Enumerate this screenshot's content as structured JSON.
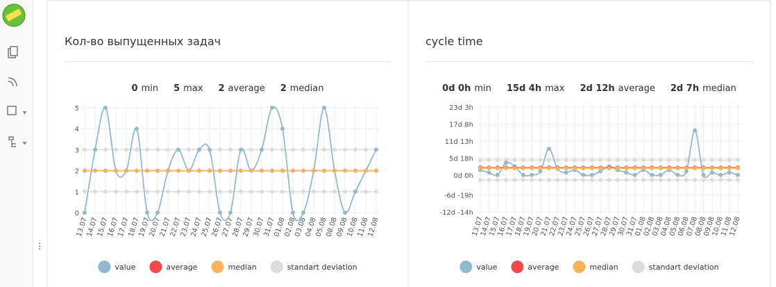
{
  "chart_data": [
    {
      "type": "line",
      "title": "Кол-во выпущенных задач",
      "stats": [
        {
          "value": "0",
          "label": "min"
        },
        {
          "value": "5",
          "label": "max"
        },
        {
          "value": "2",
          "label": "average"
        },
        {
          "value": "2",
          "label": "median"
        }
      ],
      "categories": [
        "13.07",
        "14.07",
        "15.07",
        "16.07",
        "17.07",
        "18.07",
        "19.07",
        "20.07",
        "21.07",
        "22.07",
        "23.07",
        "24.07",
        "25.07",
        "26.07",
        "27.07",
        "28.07",
        "29.07",
        "30.07",
        "31.07",
        "01.08",
        "02.08",
        "03.08",
        "04.08",
        "05.08",
        "08.08",
        "09.08",
        "10.08",
        "11.08",
        "12.08"
      ],
      "ylim": [
        0,
        5
      ],
      "yticks": [
        0,
        1,
        2,
        3,
        4,
        5
      ],
      "grid": true,
      "series": [
        {
          "name": "value",
          "color": "#94b8cc",
          "values": [
            0,
            3,
            5,
            2,
            2,
            4,
            0,
            0,
            2,
            3,
            2,
            3,
            3,
            0,
            0,
            3,
            2,
            3,
            5,
            4,
            0,
            0,
            2,
            5,
            2,
            0,
            1,
            2,
            3
          ]
        },
        {
          "name": "average",
          "color": "#f04a4a",
          "values": [
            2,
            2,
            2,
            2,
            2,
            2,
            2,
            2,
            2,
            2,
            2,
            2,
            2,
            2,
            2,
            2,
            2,
            2,
            2,
            2,
            2,
            2,
            2,
            2,
            2,
            2,
            2,
            2,
            2
          ]
        },
        {
          "name": "median",
          "color": "#f7b25e",
          "values": [
            2,
            2,
            2,
            2,
            2,
            2,
            2,
            2,
            2,
            2,
            2,
            2,
            2,
            2,
            2,
            2,
            2,
            2,
            2,
            2,
            2,
            2,
            2,
            2,
            2,
            2,
            2,
            2,
            2
          ]
        },
        {
          "name": "standart deviation",
          "color": "#dcdcdc",
          "values": [
            3,
            3,
            3,
            3,
            3,
            3,
            3,
            3,
            3,
            3,
            3,
            3,
            3,
            3,
            3,
            3,
            3,
            3,
            3,
            3,
            3,
            3,
            3,
            3,
            3,
            3,
            3,
            3,
            3
          ],
          "values_low": [
            1,
            1,
            1,
            1,
            1,
            1,
            1,
            1,
            1,
            1,
            1,
            1,
            1,
            1,
            1,
            1,
            1,
            1,
            1,
            1,
            1,
            1,
            1,
            1,
            1,
            1,
            1,
            1,
            1
          ]
        }
      ]
    },
    {
      "type": "line",
      "title": "cycle time",
      "stats": [
        {
          "value": "0d 0h",
          "label": "min"
        },
        {
          "value": "15d 4h",
          "label": "max"
        },
        {
          "value": "2d 12h",
          "label": "average"
        },
        {
          "value": "2d 7h",
          "label": "median"
        }
      ],
      "categories": [
        "13.07",
        "14.07",
        "15.07",
        "16.07",
        "17.07",
        "18.07",
        "19.07",
        "20.07",
        "21.07",
        "22.07",
        "23.07",
        "24.07",
        "25.07",
        "26.07",
        "27.07",
        "28.07",
        "29.07",
        "30.07",
        "31.07",
        "01.08",
        "02.08",
        "03.08",
        "04.08",
        "05.08",
        "06.08",
        "07.08",
        "08.08",
        "09.08",
        "10.08",
        "11.08",
        "12.08"
      ],
      "ylim": [
        -302,
        555
      ],
      "yticks": [
        {
          "value": 555,
          "label": "23d 3h"
        },
        {
          "value": 416,
          "label": "17d 8h"
        },
        {
          "value": 277,
          "label": "11d 13h"
        },
        {
          "value": 138,
          "label": "5d 18h"
        },
        {
          "value": 0,
          "label": "0d 0h"
        },
        {
          "value": -163,
          "label": "-6d -19h"
        },
        {
          "value": -302,
          "label": "-12d -14h"
        }
      ],
      "grid": true,
      "series": [
        {
          "name": "value",
          "color": "#94b8cc",
          "values": [
            40,
            20,
            0,
            100,
            70,
            0,
            0,
            30,
            214,
            50,
            20,
            40,
            0,
            0,
            30,
            70,
            40,
            20,
            0,
            40,
            0,
            0,
            40,
            0,
            30,
            364,
            0,
            20,
            0,
            20,
            0
          ]
        },
        {
          "name": "average",
          "color": "#f04a4a",
          "values": [
            60,
            60,
            60,
            60,
            60,
            60,
            60,
            60,
            60,
            60,
            60,
            60,
            60,
            60,
            60,
            60,
            60,
            60,
            60,
            60,
            60,
            60,
            60,
            60,
            60,
            60,
            60,
            60,
            60,
            60,
            60
          ]
        },
        {
          "name": "median",
          "color": "#f7b25e",
          "values": [
            55,
            55,
            55,
            55,
            55,
            55,
            55,
            55,
            55,
            55,
            55,
            55,
            55,
            55,
            55,
            55,
            55,
            55,
            55,
            55,
            55,
            55,
            55,
            55,
            55,
            55,
            55,
            55,
            55,
            55,
            55
          ]
        },
        {
          "name": "standart deviation",
          "color": "#dcdcdc",
          "values": [
            123,
            123,
            123,
            123,
            123,
            123,
            123,
            123,
            123,
            123,
            123,
            123,
            123,
            123,
            123,
            123,
            123,
            123,
            123,
            123,
            123,
            123,
            123,
            123,
            123,
            123,
            123,
            123,
            123,
            123,
            123
          ],
          "values_low": [
            -41,
            -41,
            -41,
            -41,
            -41,
            -41,
            -41,
            -41,
            -41,
            -41,
            -41,
            -41,
            -41,
            -41,
            -41,
            -41,
            -41,
            -41,
            -41,
            -41,
            -41,
            -41,
            -41,
            -41,
            -41,
            -41,
            -41,
            -41,
            -41,
            -41,
            -41
          ]
        }
      ]
    }
  ]
}
